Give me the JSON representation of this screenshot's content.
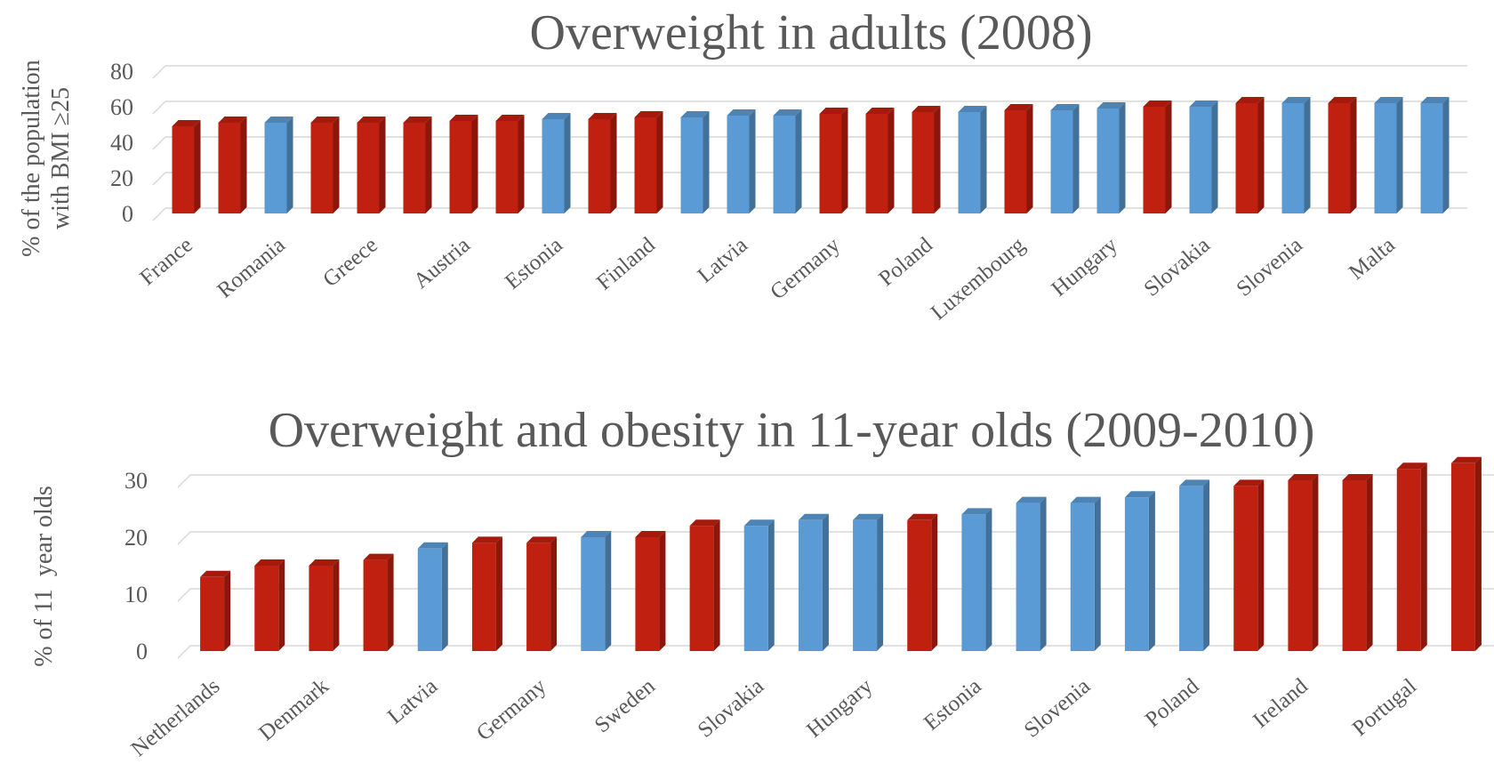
{
  "colors": {
    "red": "#c0200f",
    "blue": "#5b9bd5"
  },
  "chart_data": [
    {
      "type": "bar",
      "title": "Overweight in adults (2008)",
      "ylabel_lines": [
        "% of the population",
        "with BMI ≥25"
      ],
      "xlabel": "",
      "ylim": [
        0,
        80
      ],
      "yticks": [
        0,
        20,
        40,
        60,
        80
      ],
      "grid": true,
      "categories": [
        "France",
        "",
        "Romania",
        "",
        "Greece",
        "",
        "Austria",
        "",
        "Estonia",
        "",
        "Finland",
        "",
        "Latvia",
        "",
        "Germany",
        "",
        "Poland",
        "",
        "Luxembourg",
        "",
        "Hungary",
        "",
        "Slovakia",
        "",
        "Slovenia",
        "",
        "Malta",
        ""
      ],
      "values": [
        49,
        51,
        51,
        51,
        51,
        51,
        52,
        52,
        53,
        53,
        54,
        54,
        55,
        55,
        56,
        56,
        57,
        57,
        58,
        58,
        59,
        60,
        60,
        62,
        62,
        62,
        62,
        62
      ],
      "bar_colors": [
        "red",
        "red",
        "blue",
        "red",
        "red",
        "red",
        "red",
        "red",
        "blue",
        "red",
        "red",
        "blue",
        "blue",
        "blue",
        "red",
        "red",
        "red",
        "blue",
        "red",
        "blue",
        "blue",
        "red",
        "blue",
        "red",
        "blue",
        "red",
        "blue",
        "blue"
      ]
    },
    {
      "type": "bar",
      "title": "Overweight and obesity in 11-year olds (2009-2010)",
      "ylabel_lines": [
        "% of 11  year olds"
      ],
      "xlabel": "",
      "ylim": [
        0,
        30
      ],
      "yticks": [
        0,
        10,
        20,
        30
      ],
      "grid": true,
      "categories": [
        "Netherlands",
        "",
        "Denmark",
        "",
        "Latvia",
        "",
        "Germany",
        "",
        "Sweden",
        "",
        "Slovakia",
        "",
        "Hungary",
        "",
        "Estonia",
        "",
        "Slovenia",
        "",
        "Poland",
        "",
        "Ireland",
        "",
        "Portugal",
        ""
      ],
      "values": [
        13,
        15,
        15,
        16,
        18,
        19,
        19,
        20,
        20,
        22,
        22,
        23,
        23,
        23,
        24,
        26,
        26,
        27,
        29,
        29,
        30,
        30,
        32,
        33
      ],
      "bar_colors": [
        "red",
        "red",
        "red",
        "red",
        "blue",
        "red",
        "red",
        "blue",
        "red",
        "red",
        "blue",
        "blue",
        "blue",
        "red",
        "blue",
        "blue",
        "blue",
        "blue",
        "blue",
        "red",
        "red",
        "red",
        "red",
        "red"
      ]
    }
  ]
}
